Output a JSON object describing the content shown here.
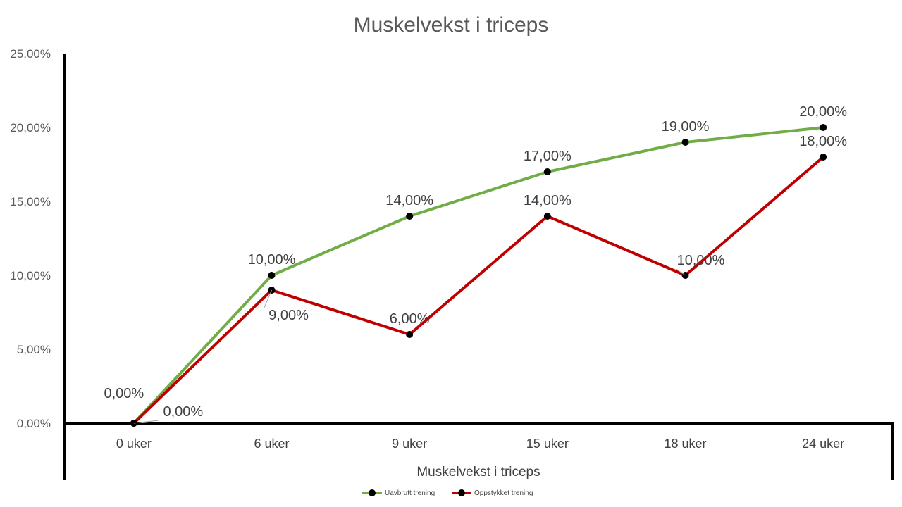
{
  "chart_data": {
    "type": "line",
    "title": "Muskelvekst i triceps",
    "xlabel": "Muskelvekst i triceps",
    "ylabel": "",
    "categories": [
      "0 uker",
      "6 uker",
      "9 uker",
      "15 uker",
      "18 uker",
      "24 uker"
    ],
    "y_ticks": [
      "0,00%",
      "5,00%",
      "10,00%",
      "15,00%",
      "20,00%",
      "25,00%"
    ],
    "ylim": [
      0,
      25
    ],
    "grid": false,
    "legend_position": "bottom",
    "series": [
      {
        "name": "Uavbrutt trening",
        "color": "#70AD47",
        "values": [
          0,
          10,
          14,
          17,
          19,
          20
        ],
        "labels": [
          "0,00%",
          "10,00%",
          "14,00%",
          "17,00%",
          "19,00%",
          "20,00%"
        ]
      },
      {
        "name": "Oppstykket trening",
        "color": "#C00000",
        "values": [
          0,
          9,
          6,
          14,
          10,
          18
        ],
        "labels": [
          "0,00%",
          "9,00%",
          "6,00%",
          "14,00%",
          "10,00%",
          "18,00%"
        ]
      }
    ]
  }
}
